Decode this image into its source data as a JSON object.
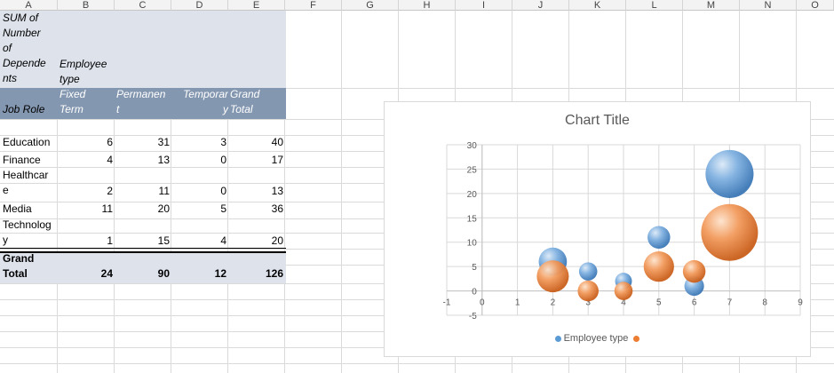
{
  "columns": [
    "A",
    "B",
    "C",
    "D",
    "E",
    "F",
    "G",
    "H",
    "I",
    "J",
    "K",
    "L",
    "M",
    "N",
    "O"
  ],
  "pivot": {
    "value_field": "SUM of\nNumber\nof\nDepende\nnts",
    "column_field": "Employee\ntype",
    "row_field": "Job Role",
    "col_headers": [
      "Fixed\nTerm",
      "Permanen\nt",
      "Temporar\ny",
      "Grand\nTotal"
    ],
    "rows": [
      {
        "label": "Education",
        "values": [
          "6",
          "31",
          "3",
          "40"
        ]
      },
      {
        "label": "Finance",
        "values": [
          "4",
          "13",
          "0",
          "17"
        ]
      },
      {
        "label": "Healthcar\ne",
        "values": [
          "2",
          "11",
          "0",
          "13"
        ]
      },
      {
        "label": "Media",
        "values": [
          "11",
          "20",
          "5",
          "36"
        ]
      },
      {
        "label": "Technolog\ny",
        "values": [
          "1",
          "15",
          "4",
          "20"
        ]
      }
    ],
    "grand_total": {
      "label": "Grand\nTotal",
      "values": [
        "24",
        "90",
        "12",
        "126"
      ]
    }
  },
  "colors": {
    "header_fill": "#8497b0",
    "light_fill": "#dde2eb",
    "series1": "#5b9bd5",
    "series2": "#ed7d31"
  },
  "chart_data": {
    "type": "scatter",
    "title": "Chart Title",
    "xlim": [
      -1,
      9
    ],
    "ylim": [
      -5,
      30
    ],
    "x_ticks": [
      "-1",
      "0",
      "1",
      "2",
      "3",
      "4",
      "5",
      "6",
      "7",
      "8",
      "9"
    ],
    "y_ticks": [
      "30",
      "25",
      "20",
      "15",
      "10",
      "5",
      "0",
      "-5"
    ],
    "bubble": true,
    "legend_position": "bottom",
    "series": [
      {
        "name": "Employee type",
        "color": "#5b9bd5",
        "points": [
          {
            "x": 2,
            "y": 6,
            "size": 31
          },
          {
            "x": 3,
            "y": 4,
            "size": 13
          },
          {
            "x": 4,
            "y": 2,
            "size": 11
          },
          {
            "x": 5,
            "y": 11,
            "size": 20
          },
          {
            "x": 6,
            "y": 1,
            "size": 15
          },
          {
            "x": 7,
            "y": 24,
            "size": 90
          }
        ]
      },
      {
        "name": "",
        "color": "#ed7d31",
        "points": [
          {
            "x": 2,
            "y": 3,
            "size": 40
          },
          {
            "x": 3,
            "y": 0,
            "size": 17
          },
          {
            "x": 4,
            "y": 0,
            "size": 13
          },
          {
            "x": 5,
            "y": 5,
            "size": 36
          },
          {
            "x": 6,
            "y": 4,
            "size": 20
          },
          {
            "x": 7,
            "y": 12,
            "size": 126
          }
        ]
      }
    ]
  }
}
